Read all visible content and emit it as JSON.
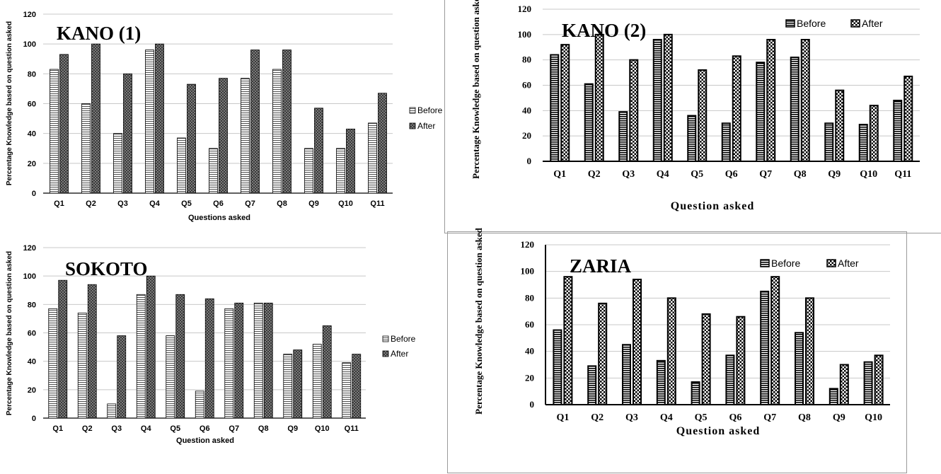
{
  "chart_data": [
    {
      "type": "bar",
      "title": "KANO (1)",
      "xlabel": "Questions asked",
      "ylabel": "Percentage Knowledge based on question asked",
      "ylim": [
        0,
        120
      ],
      "yticks": [
        "0",
        "20",
        "40",
        "60",
        "80",
        "100",
        "120"
      ],
      "categories": [
        "Q1",
        "Q2",
        "Q3",
        "Q4",
        "Q5",
        "Q6",
        "Q7",
        "Q8",
        "Q9",
        "Q10",
        "Q11"
      ],
      "series": [
        {
          "name": "Before",
          "values": [
            83,
            60,
            40,
            96,
            37,
            30,
            77,
            83,
            30,
            30,
            47
          ]
        },
        {
          "name": "After",
          "values": [
            93,
            100,
            80,
            100,
            73,
            77,
            96,
            96,
            57,
            43,
            67
          ]
        }
      ],
      "grid": true,
      "legend": "right"
    },
    {
      "type": "bar",
      "title": "KANO (2)",
      "xlabel": "Question asked",
      "ylabel": "Percentage Knowledge based on question asked",
      "ylim": [
        0,
        120
      ],
      "yticks": [
        "0",
        "20",
        "40",
        "60",
        "80",
        "100",
        "120"
      ],
      "categories": [
        "Q1",
        "Q2",
        "Q3",
        "Q4",
        "Q5",
        "Q6",
        "Q7",
        "Q8",
        "Q9",
        "Q10",
        "Q11"
      ],
      "series": [
        {
          "name": "Before",
          "values": [
            84,
            61,
            39,
            96,
            36,
            30,
            78,
            82,
            30,
            29,
            48
          ]
        },
        {
          "name": "After",
          "values": [
            92,
            100,
            80,
            100,
            72,
            83,
            96,
            96,
            56,
            44,
            67
          ]
        }
      ],
      "grid": true,
      "legend": "top-right"
    },
    {
      "type": "bar",
      "title": "SOKOTO",
      "xlabel": "Question asked",
      "ylabel": "Percentage Knowledge based on question asked",
      "ylim": [
        0,
        120
      ],
      "yticks": [
        "0",
        "20",
        "40",
        "60",
        "80",
        "100",
        "120"
      ],
      "categories": [
        "Q1",
        "Q2",
        "Q3",
        "Q4",
        "Q5",
        "Q6",
        "Q7",
        "Q8",
        "Q9",
        "Q10",
        "Q11"
      ],
      "series": [
        {
          "name": "Before",
          "values": [
            77,
            74,
            10,
            87,
            58,
            19,
            77,
            81,
            45,
            52,
            39
          ]
        },
        {
          "name": "After",
          "values": [
            97,
            94,
            58,
            100,
            87,
            84,
            81,
            81,
            48,
            65,
            45
          ]
        }
      ],
      "grid": true,
      "legend": "right"
    },
    {
      "type": "bar",
      "title": "ZARIA",
      "xlabel": "Question asked",
      "ylabel": "Percentage Knowledge based on question asked",
      "ylim": [
        0,
        120
      ],
      "yticks": [
        "0",
        "20",
        "40",
        "60",
        "80",
        "100",
        "120"
      ],
      "categories": [
        "Q1",
        "Q2",
        "Q3",
        "Q4",
        "Q5",
        "Q6",
        "Q7",
        "Q8",
        "Q9",
        "Q10"
      ],
      "series": [
        {
          "name": "Before",
          "values": [
            56,
            29,
            45,
            33,
            17,
            37,
            85,
            54,
            12,
            32
          ]
        },
        {
          "name": "After",
          "values": [
            96,
            76,
            94,
            80,
            68,
            66,
            96,
            80,
            30,
            37
          ]
        }
      ],
      "grid": true,
      "legend": "top-right"
    }
  ]
}
